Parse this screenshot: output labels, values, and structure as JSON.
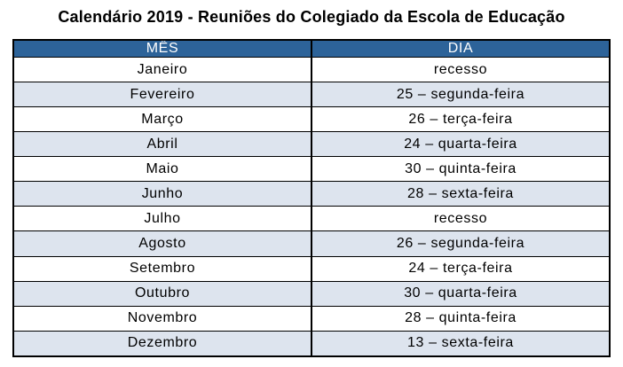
{
  "title": "Calendário 2019 - Reuniões do Colegiado da Escola de Educação",
  "table": {
    "headers": {
      "mes": "MÊS",
      "dia": "DIA"
    },
    "rows": [
      {
        "mes": "Janeiro",
        "dia": "recesso"
      },
      {
        "mes": "Fevereiro",
        "dia": "25 – segunda-feira"
      },
      {
        "mes": "Março",
        "dia": "26 – terça-feira"
      },
      {
        "mes": "Abril",
        "dia": "24 – quarta-feira"
      },
      {
        "mes": "Maio",
        "dia": "30 – quinta-feira"
      },
      {
        "mes": "Junho",
        "dia": "28 – sexta-feira"
      },
      {
        "mes": "Julho",
        "dia": "recesso"
      },
      {
        "mes": "Agosto",
        "dia": "26 – segunda-feira"
      },
      {
        "mes": "Setembro",
        "dia": "24 – terça-feira"
      },
      {
        "mes": "Outubro",
        "dia": "30 – quarta-feira"
      },
      {
        "mes": "Novembro",
        "dia": "28 – quinta-feira"
      },
      {
        "mes": "Dezembro",
        "dia": "13 – sexta-feira"
      }
    ]
  },
  "colors": {
    "header_bg": "#2D6399",
    "header_text": "#FFFFFF",
    "stripe_bg": "#DDE4EE",
    "row_bg": "#FFFFFF",
    "border": "#000000",
    "title_text": "#000000",
    "page_bg": "#FFFFFF"
  }
}
